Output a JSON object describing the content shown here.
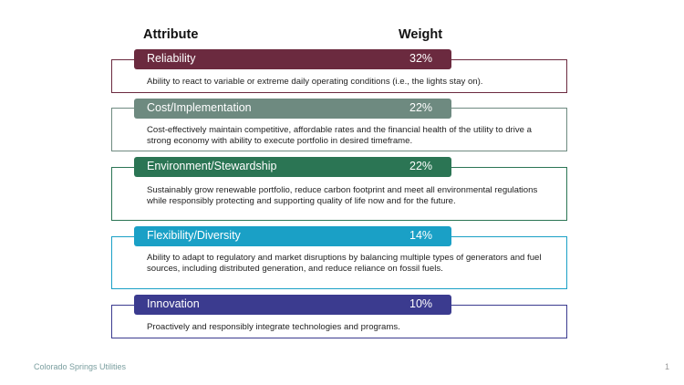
{
  "header": {
    "attribute": "Attribute",
    "weight": "Weight"
  },
  "rows": [
    {
      "name": "Reliability",
      "weight": "32%",
      "color": "#6b2a3f",
      "description": "Ability to react to variable or extreme daily operating conditions (i.e., the lights stay on)."
    },
    {
      "name": "Cost/Implementation",
      "weight": "22%",
      "color": "#6e8a80",
      "description": "Cost-effectively maintain competitive, affordable rates and the financial health of the utility to drive a strong economy with ability to execute portfolio in desired timeframe."
    },
    {
      "name": "Environment/Stewardship",
      "weight": "22%",
      "color": "#2b7554",
      "description": "Sustainably grow renewable portfolio, reduce carbon footprint and meet all environmental regulations while responsibly protecting and supporting quality of life now and for the future."
    },
    {
      "name": "Flexibility/Diversity",
      "weight": "14%",
      "color": "#1aa0c6",
      "description": "Ability to adapt to regulatory and market disruptions by balancing multiple types of generators and fuel sources, including distributed generation, and reduce reliance on fossil fuels."
    },
    {
      "name": "Innovation",
      "weight": "10%",
      "color": "#3b3b8f",
      "description": "Proactively and responsibly integrate technologies and programs."
    }
  ],
  "footer": {
    "org": "Colorado Springs Utilities",
    "page": "1"
  }
}
